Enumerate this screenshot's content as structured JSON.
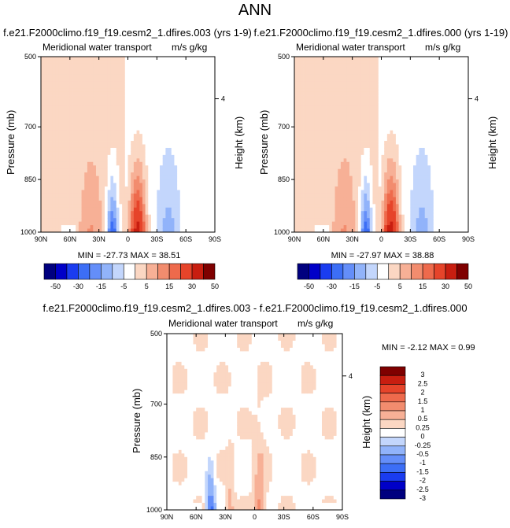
{
  "page": {
    "title": "ANN"
  },
  "colors": {
    "scale": [
      "#00007f",
      "#0000c8",
      "#1a3cf0",
      "#3c6ef6",
      "#648ef9",
      "#91b3fa",
      "#c3d6fc",
      "#ffffff",
      "#fbd7c3",
      "#f7b096",
      "#f28c6e",
      "#ee6a4c",
      "#e6442a",
      "#c81e10",
      "#7f0000"
    ]
  },
  "chart_data": [
    {
      "type": "heatmap",
      "id": "panel_a",
      "title": "f.e21.F2000climo.f19_f19.cesm2_1.dfires.003 (yrs 1-9)",
      "left_string": "Meridional water transport",
      "right_string": "m/s g/kg",
      "ylabel": "Pressure (mb)",
      "ylabel_right": "Height (km)",
      "x_ticks": [
        "90N",
        "60N",
        "30N",
        "0",
        "30S",
        "60S",
        "90S"
      ],
      "x_range": [
        90,
        -90
      ],
      "y_ticks": [
        "500",
        "700",
        "850",
        "1000"
      ],
      "y_tick_values": [
        500,
        700,
        850,
        1000
      ],
      "y_range": [
        500,
        1000
      ],
      "right_ticks": [
        "4"
      ],
      "stats": "MIN = -27.73   MAX = 38.51",
      "min": -27.73,
      "max": 38.51,
      "colorbar_labels": [
        "-50",
        "-30",
        "-15",
        "-5",
        "5",
        "15",
        "30",
        "50"
      ],
      "colorbar_levels": [
        -50,
        -40,
        -30,
        -20,
        -15,
        -10,
        -5,
        0,
        5,
        10,
        15,
        20,
        30,
        40,
        50
      ]
    },
    {
      "type": "heatmap",
      "id": "panel_b",
      "title": "f.e21.F2000climo.f19_f19.cesm2_1.dfires.000 (yrs 1-19)",
      "left_string": "Meridional water transport",
      "right_string": "m/s g/kg",
      "ylabel": "Pressure (mb)",
      "ylabel_right": "Height (km)",
      "x_ticks": [
        "90N",
        "60N",
        "30N",
        "0",
        "30S",
        "60S",
        "90S"
      ],
      "x_range": [
        90,
        -90
      ],
      "y_ticks": [
        "500",
        "700",
        "850",
        "1000"
      ],
      "y_tick_values": [
        500,
        700,
        850,
        1000
      ],
      "y_range": [
        500,
        1000
      ],
      "right_ticks": [
        "4"
      ],
      "stats": "MIN = -27.97   MAX = 38.88",
      "min": -27.97,
      "max": 38.88,
      "colorbar_labels": [
        "-50",
        "-30",
        "-15",
        "-5",
        "5",
        "15",
        "30",
        "50"
      ],
      "colorbar_levels": [
        -50,
        -40,
        -30,
        -20,
        -15,
        -10,
        -5,
        0,
        5,
        10,
        15,
        20,
        30,
        40,
        50
      ]
    },
    {
      "type": "heatmap",
      "id": "panel_diff",
      "title": "f.e21.F2000climo.f19_f19.cesm2_1.dfires.003 - f.e21.F2000climo.f19_f19.cesm2_1.dfires.000",
      "left_string": "Meridional water transport",
      "right_string": "m/s g/kg",
      "ylabel": "Pressure (mb)",
      "ylabel_right": "Height (km)",
      "x_ticks": [
        "90N",
        "60N",
        "30N",
        "0",
        "30S",
        "60S",
        "90S"
      ],
      "x_range": [
        90,
        -90
      ],
      "y_ticks": [
        "500",
        "700",
        "850",
        "1000"
      ],
      "y_tick_values": [
        500,
        700,
        850,
        1000
      ],
      "y_range": [
        500,
        1000
      ],
      "right_ticks": [
        "4"
      ],
      "stats": "MIN = -2.12   MAX = 0.99",
      "min": -2.12,
      "max": 0.99,
      "colorbar_labels": [
        "3",
        "2.5",
        "2",
        "1.5",
        "1",
        "0.5",
        "0.25",
        "0",
        "-0.25",
        "-0.5",
        "-1",
        "-1.5",
        "-2",
        "-2.5",
        "-3"
      ],
      "colorbar_levels": [
        -3,
        -2.5,
        -2,
        -1.5,
        -1,
        -0.5,
        -0.25,
        0,
        0.25,
        0.5,
        1,
        1.5,
        2,
        2.5,
        3
      ]
    }
  ]
}
